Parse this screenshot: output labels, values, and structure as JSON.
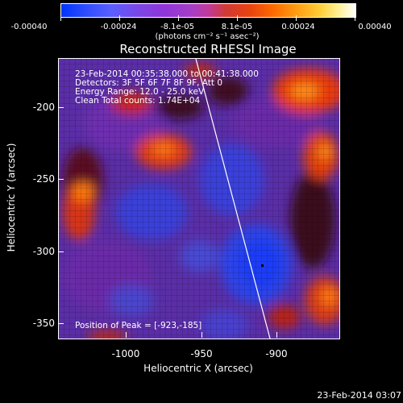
{
  "colorbar": {
    "tick_labels": [
      "-0.00040",
      "-0.00024",
      "-8.1e-05",
      "8.1e-05",
      "0.00024",
      "0.00040"
    ],
    "unit_label": "(photons cm⁻² s⁻¹ asec⁻²)",
    "colors": [
      "#0033ff",
      "#8f35d8",
      "#d23a34",
      "#ff9d12",
      "#ffffff"
    ]
  },
  "plot": {
    "title": "Reconstructed RHESSI Image",
    "xlabel": "Heliocentric X (arcsec)",
    "ylabel": "Heliocentric Y (arcsec)",
    "x_ticks": [
      "-1000",
      "-950",
      "-900"
    ],
    "y_ticks": [
      "-200",
      "-250",
      "-300",
      "-350"
    ],
    "info": {
      "time_range": "23-Feb-2014 00:35:38.000 to 00:41:38.000",
      "detectors": "Detectors: 3F 5F 6F 7F 8F 9F, Att 0",
      "energy": "Energy Range: 12.0 - 25.0 keV",
      "method": "Clean     Total counts: 1.74E+04"
    },
    "peak_label": "Position of Peak = [-923,-185]"
  },
  "timestamp": "23-Feb-2014 03:07"
}
